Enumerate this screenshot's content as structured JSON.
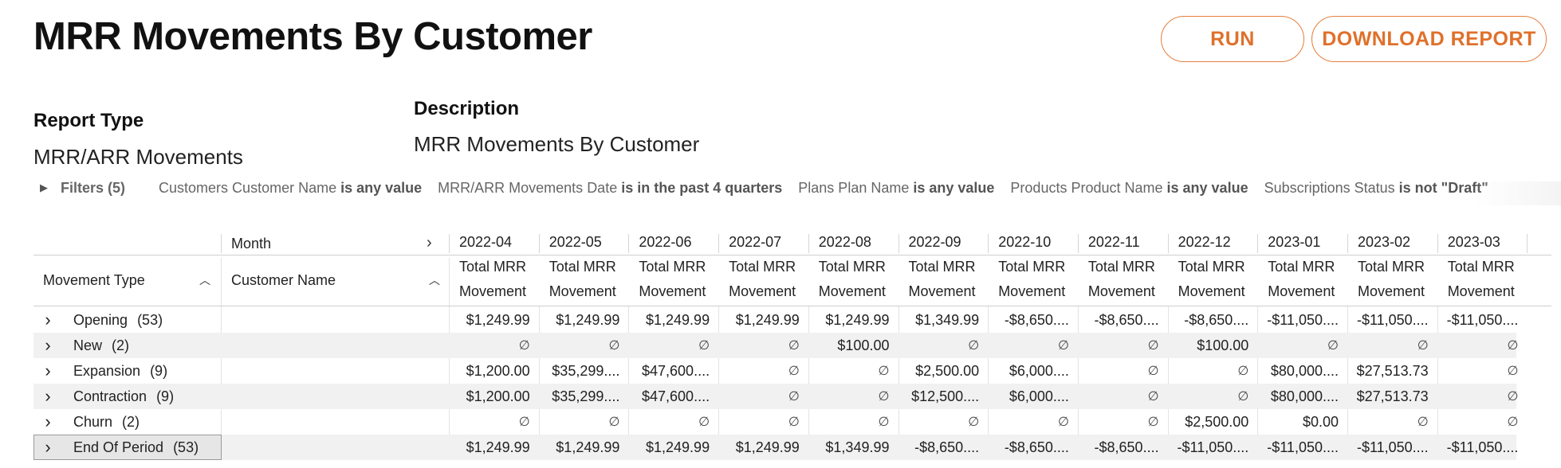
{
  "page": {
    "title": "MRR Movements By Customer",
    "run_label": "RUN",
    "download_label": "DOWNLOAD REPORT"
  },
  "report_type": {
    "label": "Report Type",
    "value": "MRR/ARR Movements"
  },
  "description": {
    "label": "Description",
    "value": "MRR Movements By Customer"
  },
  "filters": {
    "toggle_label": "Filters (5)",
    "items": [
      {
        "field": "Customers Customer Name",
        "op": "is any value"
      },
      {
        "field": "MRR/ARR Movements Date",
        "op": "is in the past 4 quarters"
      },
      {
        "field": "Plans Plan Name",
        "op": "is any value"
      },
      {
        "field": "Products Product Name",
        "op": "is any value"
      },
      {
        "field": "Subscriptions Status",
        "op": "is not \"Draft\""
      }
    ]
  },
  "table": {
    "pivot_label": "Month",
    "col_movement_type": "Movement Type",
    "col_customer_name": "Customer Name",
    "measure_line1": "Total MRR",
    "measure_line2": "Movement",
    "months": [
      "2022-04",
      "2022-05",
      "2022-06",
      "2022-07",
      "2022-08",
      "2022-09",
      "2022-10",
      "2022-11",
      "2022-12",
      "2023-01",
      "2023-02",
      "2023-03"
    ],
    "rows": [
      {
        "label": "Opening",
        "count": "(53)",
        "values": [
          "$1,249.99",
          "$1,249.99",
          "$1,249.99",
          "$1,249.99",
          "$1,249.99",
          "$1,349.99",
          "-$8,650....",
          "-$8,650....",
          "-$8,650....",
          "-$11,050....",
          "-$11,050....",
          "-$11,050...."
        ]
      },
      {
        "label": "New",
        "count": "(2)",
        "values": [
          "∅",
          "∅",
          "∅",
          "∅",
          "$100.00",
          "∅",
          "∅",
          "∅",
          "$100.00",
          "∅",
          "∅",
          "∅"
        ]
      },
      {
        "label": "Expansion",
        "count": "(9)",
        "values": [
          "$1,200.00",
          "$35,299....",
          "$47,600....",
          "∅",
          "∅",
          "$2,500.00",
          "$6,000....",
          "∅",
          "∅",
          "$80,000....",
          "$27,513.73",
          "∅"
        ]
      },
      {
        "label": "Contraction",
        "count": "(9)",
        "values": [
          "$1,200.00",
          "$35,299....",
          "$47,600....",
          "∅",
          "∅",
          "$12,500....",
          "$6,000....",
          "∅",
          "∅",
          "$80,000....",
          "$27,513.73",
          "∅"
        ]
      },
      {
        "label": "Churn",
        "count": "(2)",
        "values": [
          "∅",
          "∅",
          "∅",
          "∅",
          "∅",
          "∅",
          "∅",
          "∅",
          "$2,500.00",
          "$0.00",
          "∅",
          "∅"
        ]
      },
      {
        "label": "End Of Period",
        "count": "(53)",
        "values": [
          "$1,249.99",
          "$1,249.99",
          "$1,249.99",
          "$1,249.99",
          "$1,349.99",
          "-$8,650....",
          "-$8,650....",
          "-$8,650....",
          "-$11,050....",
          "-$11,050....",
          "-$11,050....",
          "-$11,050...."
        ]
      }
    ]
  },
  "colors": {
    "accent": "#e0702a",
    "row_shade": "#f1f1f1",
    "selected_row": "#e6e6e6"
  }
}
